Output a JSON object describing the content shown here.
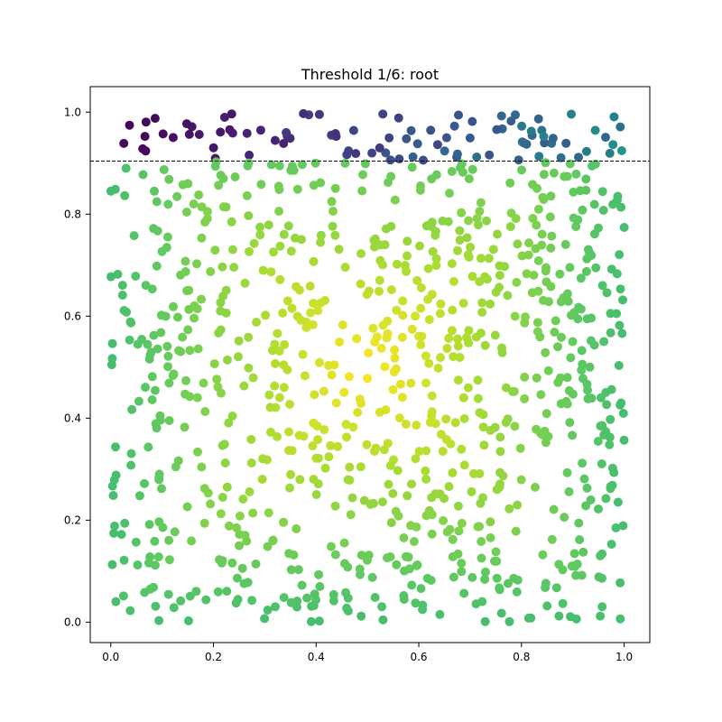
{
  "chart_data": {
    "type": "scatter",
    "title": "Threshold 1/6: root",
    "xlabel": "",
    "ylabel": "",
    "xlim": [
      -0.04,
      1.05
    ],
    "ylim": [
      -0.04,
      1.05
    ],
    "xticks": [
      0.0,
      0.2,
      0.4,
      0.6,
      0.8,
      1.0
    ],
    "yticks": [
      0.0,
      0.2,
      0.4,
      0.6,
      0.8,
      1.0
    ],
    "xtick_labels": [
      "0.0",
      "0.2",
      "0.4",
      "0.6",
      "0.8",
      "1.0"
    ],
    "ytick_labels": [
      "0.0",
      "0.2",
      "0.4",
      "0.6",
      "0.8",
      "1.0"
    ],
    "threshold_line": {
      "y": 0.904,
      "style": "dashed",
      "color": "#000000"
    },
    "colormap": "viridis",
    "color_value": "1 - 1.6 * max(|x - 0.5|, |y - 0.5|) for points below the threshold; points above the threshold use the dark purple-to-teal range",
    "grid": false,
    "point_count": 1000,
    "x_distribution": "uniform on [0, 1]",
    "y_distribution": "uniform on [0, 1]"
  }
}
